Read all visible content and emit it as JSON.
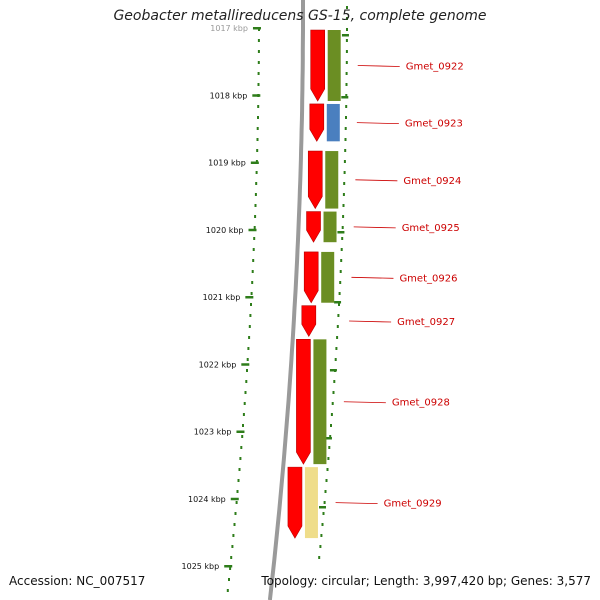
{
  "title": "Geobacter metallireducens GS-15, complete genome",
  "footer": {
    "accession": "Accession: NC_007517",
    "summary": "Topology: circular; Length: 3,997,420 bp; Genes: 3,577"
  },
  "colors": {
    "tick": "#2e7d1a",
    "backbone": "#9a9a9a",
    "cds": "#ff0000",
    "label": "#cc0000",
    "leader": "#cc0000",
    "cog_green": "#6b8e23",
    "cog_blue": "#4a7fbf",
    "cog_yellow": "#efdd8a"
  },
  "axis": {
    "unit": "kbp",
    "labels": [
      "1017 kbp",
      "1018 kbp",
      "1019 kbp",
      "1020 kbp",
      "1021 kbp",
      "1022 kbp",
      "1023 kbp",
      "1024 kbp",
      "1025 kbp"
    ]
  },
  "genes": [
    {
      "id": "Gmet_0922",
      "start_kbp": 1017.0,
      "end_kbp": 1018.1,
      "cog": "cog_green"
    },
    {
      "id": "Gmet_0923",
      "start_kbp": 1018.1,
      "end_kbp": 1018.7,
      "cog": "cog_blue"
    },
    {
      "id": "Gmet_0924",
      "start_kbp": 1018.8,
      "end_kbp": 1019.7,
      "cog": "cog_green"
    },
    {
      "id": "Gmet_0925",
      "start_kbp": 1019.7,
      "end_kbp": 1020.2,
      "cog": "cog_green"
    },
    {
      "id": "Gmet_0926",
      "start_kbp": 1020.3,
      "end_kbp": 1021.1,
      "cog": "cog_green"
    },
    {
      "id": "Gmet_0927",
      "start_kbp": 1021.1,
      "end_kbp": 1021.6,
      "cog": ""
    },
    {
      "id": "Gmet_0928",
      "start_kbp": 1021.6,
      "end_kbp": 1023.5,
      "cog": "cog_green"
    },
    {
      "id": "Gmet_0929",
      "start_kbp": 1023.5,
      "end_kbp": 1024.6,
      "cog": "cog_yellow"
    }
  ]
}
